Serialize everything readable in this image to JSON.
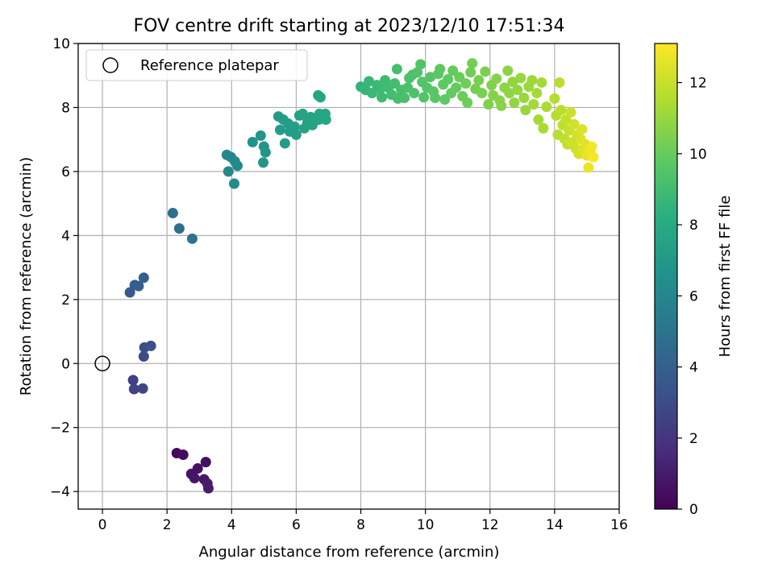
{
  "chart_data": {
    "type": "scatter",
    "title": "FOV centre drift starting at 2023/12/10 17:51:34",
    "xlabel": "Angular distance from reference (arcmin)",
    "ylabel": "Rotation from reference (arcmin)",
    "xlim": [
      -0.75,
      16.0
    ],
    "ylim": [
      -4.55,
      10.0
    ],
    "xticks": [
      0,
      2,
      4,
      6,
      8,
      10,
      12,
      14,
      16
    ],
    "xtick_labels": [
      "0",
      "2",
      "4",
      "6",
      "8",
      "10",
      "12",
      "14",
      "16"
    ],
    "yticks": [
      -4,
      -2,
      0,
      2,
      4,
      6,
      8,
      10
    ],
    "ytick_labels": [
      "−4",
      "−2",
      "0",
      "2",
      "4",
      "6",
      "8",
      "10"
    ],
    "grid": true,
    "legend": {
      "position": "upper-left",
      "entries": [
        {
          "label": "Reference platepar",
          "marker": "open-circle"
        }
      ]
    },
    "reference_point": {
      "x": 0,
      "y": 0
    },
    "colorbar": {
      "label": "Hours from first FF file",
      "range": [
        0,
        13.1
      ],
      "ticks": [
        0,
        2,
        4,
        6,
        8,
        10,
        12
      ],
      "tick_labels": [
        "0",
        "2",
        "4",
        "6",
        "8",
        "10",
        "12"
      ],
      "colormap": "viridis"
    },
    "points": [
      {
        "x": 2.3,
        "y": -2.8,
        "t": 0.3
      },
      {
        "x": 2.5,
        "y": -2.85,
        "t": 0.4
      },
      {
        "x": 3.2,
        "y": -3.08,
        "t": 0.5
      },
      {
        "x": 2.95,
        "y": -3.28,
        "t": 0.6
      },
      {
        "x": 2.75,
        "y": -3.45,
        "t": 0.7
      },
      {
        "x": 2.85,
        "y": -3.58,
        "t": 0.8
      },
      {
        "x": 3.15,
        "y": -3.62,
        "t": 0.9
      },
      {
        "x": 3.25,
        "y": -3.75,
        "t": 0.95
      },
      {
        "x": 3.28,
        "y": -3.9,
        "t": 1.0
      },
      {
        "x": 0.95,
        "y": -0.52,
        "t": 2.5
      },
      {
        "x": 0.98,
        "y": -0.8,
        "t": 2.6
      },
      {
        "x": 1.25,
        "y": -0.78,
        "t": 2.7
      },
      {
        "x": 1.28,
        "y": 0.22,
        "t": 3.0
      },
      {
        "x": 1.3,
        "y": 0.5,
        "t": 3.1
      },
      {
        "x": 1.5,
        "y": 0.55,
        "t": 3.2
      },
      {
        "x": 0.85,
        "y": 2.22,
        "t": 3.7
      },
      {
        "x": 1.0,
        "y": 2.45,
        "t": 3.8
      },
      {
        "x": 1.12,
        "y": 2.42,
        "t": 3.9
      },
      {
        "x": 1.28,
        "y": 2.68,
        "t": 4.0
      },
      {
        "x": 2.18,
        "y": 4.7,
        "t": 4.7
      },
      {
        "x": 2.38,
        "y": 4.22,
        "t": 4.8
      },
      {
        "x": 2.78,
        "y": 3.9,
        "t": 5.0
      },
      {
        "x": 3.85,
        "y": 6.52,
        "t": 6.0
      },
      {
        "x": 3.98,
        "y": 6.45,
        "t": 6.05
      },
      {
        "x": 4.1,
        "y": 6.32,
        "t": 6.1
      },
      {
        "x": 3.9,
        "y": 6.0,
        "t": 6.15
      },
      {
        "x": 4.18,
        "y": 6.18,
        "t": 6.2
      },
      {
        "x": 4.08,
        "y": 5.62,
        "t": 6.25
      },
      {
        "x": 4.65,
        "y": 6.92,
        "t": 6.6
      },
      {
        "x": 4.9,
        "y": 7.12,
        "t": 6.7
      },
      {
        "x": 5.0,
        "y": 6.78,
        "t": 6.8
      },
      {
        "x": 5.05,
        "y": 6.6,
        "t": 6.85
      },
      {
        "x": 4.98,
        "y": 6.28,
        "t": 6.9
      },
      {
        "x": 5.45,
        "y": 7.72,
        "t": 7.1
      },
      {
        "x": 5.6,
        "y": 7.62,
        "t": 7.2
      },
      {
        "x": 5.75,
        "y": 7.5,
        "t": 7.25
      },
      {
        "x": 5.5,
        "y": 7.3,
        "t": 7.15
      },
      {
        "x": 5.8,
        "y": 7.25,
        "t": 7.3
      },
      {
        "x": 5.65,
        "y": 6.88,
        "t": 7.2
      },
      {
        "x": 6.0,
        "y": 7.15,
        "t": 7.3
      },
      {
        "x": 5.95,
        "y": 7.4,
        "t": 7.35
      },
      {
        "x": 6.1,
        "y": 7.75,
        "t": 7.4
      },
      {
        "x": 6.2,
        "y": 7.8,
        "t": 7.5
      },
      {
        "x": 6.35,
        "y": 7.55,
        "t": 7.55
      },
      {
        "x": 6.25,
        "y": 7.35,
        "t": 7.5
      },
      {
        "x": 6.45,
        "y": 7.7,
        "t": 7.6
      },
      {
        "x": 6.5,
        "y": 7.45,
        "t": 7.6
      },
      {
        "x": 6.68,
        "y": 8.38,
        "t": 7.7
      },
      {
        "x": 6.75,
        "y": 8.32,
        "t": 7.72
      },
      {
        "x": 6.72,
        "y": 7.8,
        "t": 7.75
      },
      {
        "x": 6.7,
        "y": 7.62,
        "t": 7.7
      },
      {
        "x": 6.9,
        "y": 7.8,
        "t": 7.8
      },
      {
        "x": 6.92,
        "y": 7.62,
        "t": 7.82
      },
      {
        "x": 8.0,
        "y": 8.65,
        "t": 8.5
      },
      {
        "x": 8.15,
        "y": 8.55,
        "t": 8.6
      },
      {
        "x": 8.25,
        "y": 8.82,
        "t": 8.7
      },
      {
        "x": 8.35,
        "y": 8.45,
        "t": 8.75
      },
      {
        "x": 8.5,
        "y": 8.7,
        "t": 8.8
      },
      {
        "x": 8.6,
        "y": 8.58,
        "t": 8.85
      },
      {
        "x": 8.65,
        "y": 8.32,
        "t": 8.85
      },
      {
        "x": 8.75,
        "y": 8.85,
        "t": 8.9
      },
      {
        "x": 8.85,
        "y": 8.62,
        "t": 8.95
      },
      {
        "x": 8.95,
        "y": 8.4,
        "t": 9.0
      },
      {
        "x": 9.05,
        "y": 8.75,
        "t": 9.05
      },
      {
        "x": 9.12,
        "y": 9.2,
        "t": 9.1
      },
      {
        "x": 9.15,
        "y": 8.28,
        "t": 9.1
      },
      {
        "x": 9.25,
        "y": 8.55,
        "t": 9.15
      },
      {
        "x": 9.35,
        "y": 8.3,
        "t": 9.2
      },
      {
        "x": 9.45,
        "y": 8.62,
        "t": 9.25
      },
      {
        "x": 9.5,
        "y": 8.92,
        "t": 9.3
      },
      {
        "x": 9.6,
        "y": 9.02,
        "t": 9.35
      },
      {
        "x": 9.65,
        "y": 8.45,
        "t": 9.35
      },
      {
        "x": 9.75,
        "y": 9.1,
        "t": 9.4
      },
      {
        "x": 9.85,
        "y": 9.35,
        "t": 9.45
      },
      {
        "x": 9.9,
        "y": 8.8,
        "t": 9.5
      },
      {
        "x": 9.95,
        "y": 8.32,
        "t": 9.5
      },
      {
        "x": 10.05,
        "y": 8.62,
        "t": 9.55
      },
      {
        "x": 10.15,
        "y": 8.95,
        "t": 9.6
      },
      {
        "x": 10.25,
        "y": 8.5,
        "t": 9.65
      },
      {
        "x": 10.3,
        "y": 8.3,
        "t": 9.65
      },
      {
        "x": 10.4,
        "y": 9.05,
        "t": 9.7
      },
      {
        "x": 10.45,
        "y": 9.2,
        "t": 9.75
      },
      {
        "x": 10.55,
        "y": 8.72,
        "t": 9.8
      },
      {
        "x": 10.6,
        "y": 8.25,
        "t": 9.8
      },
      {
        "x": 10.7,
        "y": 8.88,
        "t": 9.85
      },
      {
        "x": 10.8,
        "y": 8.45,
        "t": 9.9
      },
      {
        "x": 10.85,
        "y": 9.15,
        "t": 9.95
      },
      {
        "x": 10.95,
        "y": 8.62,
        "t": 10.0
      },
      {
        "x": 11.05,
        "y": 8.95,
        "t": 10.05
      },
      {
        "x": 11.15,
        "y": 8.35,
        "t": 10.1
      },
      {
        "x": 11.25,
        "y": 8.75,
        "t": 10.15
      },
      {
        "x": 11.3,
        "y": 8.15,
        "t": 10.15
      },
      {
        "x": 11.4,
        "y": 9.1,
        "t": 10.2
      },
      {
        "x": 11.45,
        "y": 9.38,
        "t": 10.25
      },
      {
        "x": 11.55,
        "y": 8.58,
        "t": 10.3
      },
      {
        "x": 11.65,
        "y": 8.85,
        "t": 10.35
      },
      {
        "x": 11.75,
        "y": 8.45,
        "t": 10.4
      },
      {
        "x": 11.85,
        "y": 9.12,
        "t": 10.45
      },
      {
        "x": 11.95,
        "y": 8.1,
        "t": 10.5
      },
      {
        "x": 12.05,
        "y": 8.7,
        "t": 10.55
      },
      {
        "x": 12.1,
        "y": 8.38,
        "t": 10.6
      },
      {
        "x": 12.2,
        "y": 8.9,
        "t": 10.65
      },
      {
        "x": 12.3,
        "y": 8.22,
        "t": 10.7
      },
      {
        "x": 12.35,
        "y": 8.05,
        "t": 10.7
      },
      {
        "x": 12.45,
        "y": 8.62,
        "t": 10.75
      },
      {
        "x": 12.55,
        "y": 9.15,
        "t": 10.8
      },
      {
        "x": 12.6,
        "y": 8.45,
        "t": 10.85
      },
      {
        "x": 12.7,
        "y": 8.8,
        "t": 10.9
      },
      {
        "x": 12.75,
        "y": 8.15,
        "t": 10.9
      },
      {
        "x": 12.85,
        "y": 8.55,
        "t": 10.95
      },
      {
        "x": 12.95,
        "y": 8.92,
        "t": 11.0
      },
      {
        "x": 13.05,
        "y": 8.3,
        "t": 11.05
      },
      {
        "x": 13.1,
        "y": 7.92,
        "t": 11.05
      },
      {
        "x": 13.2,
        "y": 8.65,
        "t": 11.1
      },
      {
        "x": 13.3,
        "y": 8.85,
        "t": 11.15
      },
      {
        "x": 13.35,
        "y": 8.1,
        "t": 11.2
      },
      {
        "x": 13.45,
        "y": 8.45,
        "t": 11.25
      },
      {
        "x": 13.5,
        "y": 7.62,
        "t": 11.3
      },
      {
        "x": 13.6,
        "y": 8.78,
        "t": 11.3
      },
      {
        "x": 13.65,
        "y": 7.35,
        "t": 11.35
      },
      {
        "x": 13.75,
        "y": 8.02,
        "t": 11.4
      },
      {
        "x": 14.0,
        "y": 8.28,
        "t": 11.6
      },
      {
        "x": 14.05,
        "y": 7.75,
        "t": 11.65
      },
      {
        "x": 14.1,
        "y": 7.15,
        "t": 11.7
      },
      {
        "x": 14.15,
        "y": 8.78,
        "t": 11.7
      },
      {
        "x": 14.2,
        "y": 7.92,
        "t": 11.75
      },
      {
        "x": 14.25,
        "y": 7.45,
        "t": 11.8
      },
      {
        "x": 14.3,
        "y": 7.02,
        "t": 11.85
      },
      {
        "x": 14.35,
        "y": 7.62,
        "t": 11.9
      },
      {
        "x": 14.4,
        "y": 6.85,
        "t": 11.95
      },
      {
        "x": 14.45,
        "y": 7.28,
        "t": 12.0
      },
      {
        "x": 14.5,
        "y": 7.85,
        "t": 12.05
      },
      {
        "x": 14.55,
        "y": 6.92,
        "t": 12.1
      },
      {
        "x": 14.6,
        "y": 7.48,
        "t": 12.15
      },
      {
        "x": 14.65,
        "y": 6.72,
        "t": 12.2
      },
      {
        "x": 14.7,
        "y": 7.15,
        "t": 12.25
      },
      {
        "x": 14.75,
        "y": 6.55,
        "t": 12.3
      },
      {
        "x": 14.8,
        "y": 7.02,
        "t": 12.35
      },
      {
        "x": 14.85,
        "y": 7.32,
        "t": 12.4
      },
      {
        "x": 14.88,
        "y": 6.68,
        "t": 12.45
      },
      {
        "x": 14.95,
        "y": 6.85,
        "t": 12.5
      },
      {
        "x": 15.0,
        "y": 6.5,
        "t": 12.6
      },
      {
        "x": 15.05,
        "y": 6.12,
        "t": 12.7
      },
      {
        "x": 15.1,
        "y": 6.65,
        "t": 12.8
      },
      {
        "x": 15.15,
        "y": 6.78,
        "t": 12.9
      },
      {
        "x": 15.2,
        "y": 6.45,
        "t": 13.0
      }
    ]
  }
}
